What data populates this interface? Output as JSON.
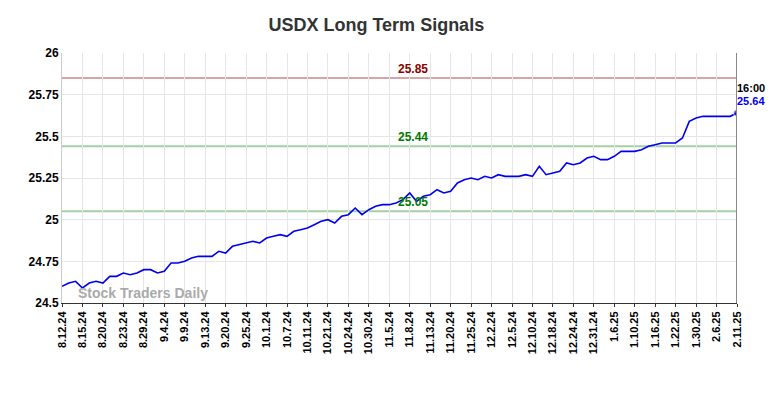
{
  "chart_data": {
    "type": "line",
    "title": "USDX Long Term Signals",
    "watermark": "Stock Traders Daily",
    "end_label": "16:00",
    "categories": [
      "8.12.24",
      null,
      null,
      "8.15.24",
      null,
      null,
      "8.20.24",
      null,
      null,
      "8.23.24",
      null,
      null,
      "8.29.24",
      null,
      null,
      "9.4.24",
      null,
      null,
      "9.9.24",
      null,
      null,
      "9.13.24",
      null,
      null,
      "9.20.24",
      null,
      null,
      "9.25.24",
      null,
      null,
      "10.1.24",
      null,
      null,
      "10.7.24",
      null,
      null,
      "10.11.24",
      null,
      null,
      "10.21.24",
      null,
      null,
      "10.24.24",
      null,
      null,
      "10.30.24",
      null,
      null,
      "11.5.24",
      null,
      null,
      "11.8.24",
      null,
      null,
      "11.13.24",
      null,
      null,
      "11.20.24",
      null,
      null,
      "11.25.24",
      null,
      null,
      "12.2.24",
      null,
      null,
      "12.5.24",
      null,
      null,
      "12.10.24",
      null,
      null,
      "12.18.24",
      null,
      null,
      "12.24.24",
      null,
      null,
      "12.31.24",
      null,
      null,
      "1.6.25",
      null,
      null,
      "1.10.25",
      null,
      null,
      "1.16.25",
      null,
      null,
      "1.22.25",
      null,
      null,
      "1.30.25",
      null,
      null,
      "2.6.25",
      null,
      null,
      "2.11.25"
    ],
    "series": [
      {
        "name": "USDX",
        "color": "#0000ee",
        "values": [
          24.6,
          24.62,
          24.63,
          24.59,
          24.62,
          24.63,
          24.62,
          24.66,
          24.66,
          24.68,
          24.67,
          24.68,
          24.7,
          24.7,
          24.68,
          24.69,
          24.74,
          24.74,
          24.75,
          24.77,
          24.78,
          24.78,
          24.78,
          24.81,
          24.8,
          24.84,
          24.85,
          24.86,
          24.87,
          24.86,
          24.89,
          24.9,
          24.91,
          24.9,
          24.93,
          24.94,
          24.95,
          24.97,
          24.99,
          25.0,
          24.98,
          25.02,
          25.03,
          25.07,
          25.03,
          25.06,
          25.08,
          25.09,
          25.09,
          25.1,
          25.12,
          25.16,
          25.11,
          25.14,
          25.15,
          25.18,
          25.16,
          25.17,
          25.22,
          25.24,
          25.25,
          25.24,
          25.26,
          25.25,
          25.27,
          25.26,
          25.26,
          25.26,
          25.27,
          25.26,
          25.32,
          25.27,
          25.28,
          25.29,
          25.34,
          25.33,
          25.34,
          25.37,
          25.38,
          25.36,
          25.36,
          25.38,
          25.41,
          25.41,
          25.41,
          25.42,
          25.44,
          25.45,
          25.46,
          25.46,
          25.46,
          25.49,
          25.59,
          25.61,
          25.62,
          25.62,
          25.62,
          25.62,
          25.62,
          25.64
        ]
      }
    ],
    "levels": [
      {
        "value": 25.85,
        "color": "#8b0000"
      },
      {
        "value": 25.44,
        "color": "#007a00"
      },
      {
        "value": 25.05,
        "color": "#007a00"
      }
    ],
    "ylim": [
      24.5,
      26
    ],
    "yticks": [
      24.5,
      24.75,
      25,
      25.25,
      25.5,
      25.75,
      26
    ],
    "grid": true
  }
}
